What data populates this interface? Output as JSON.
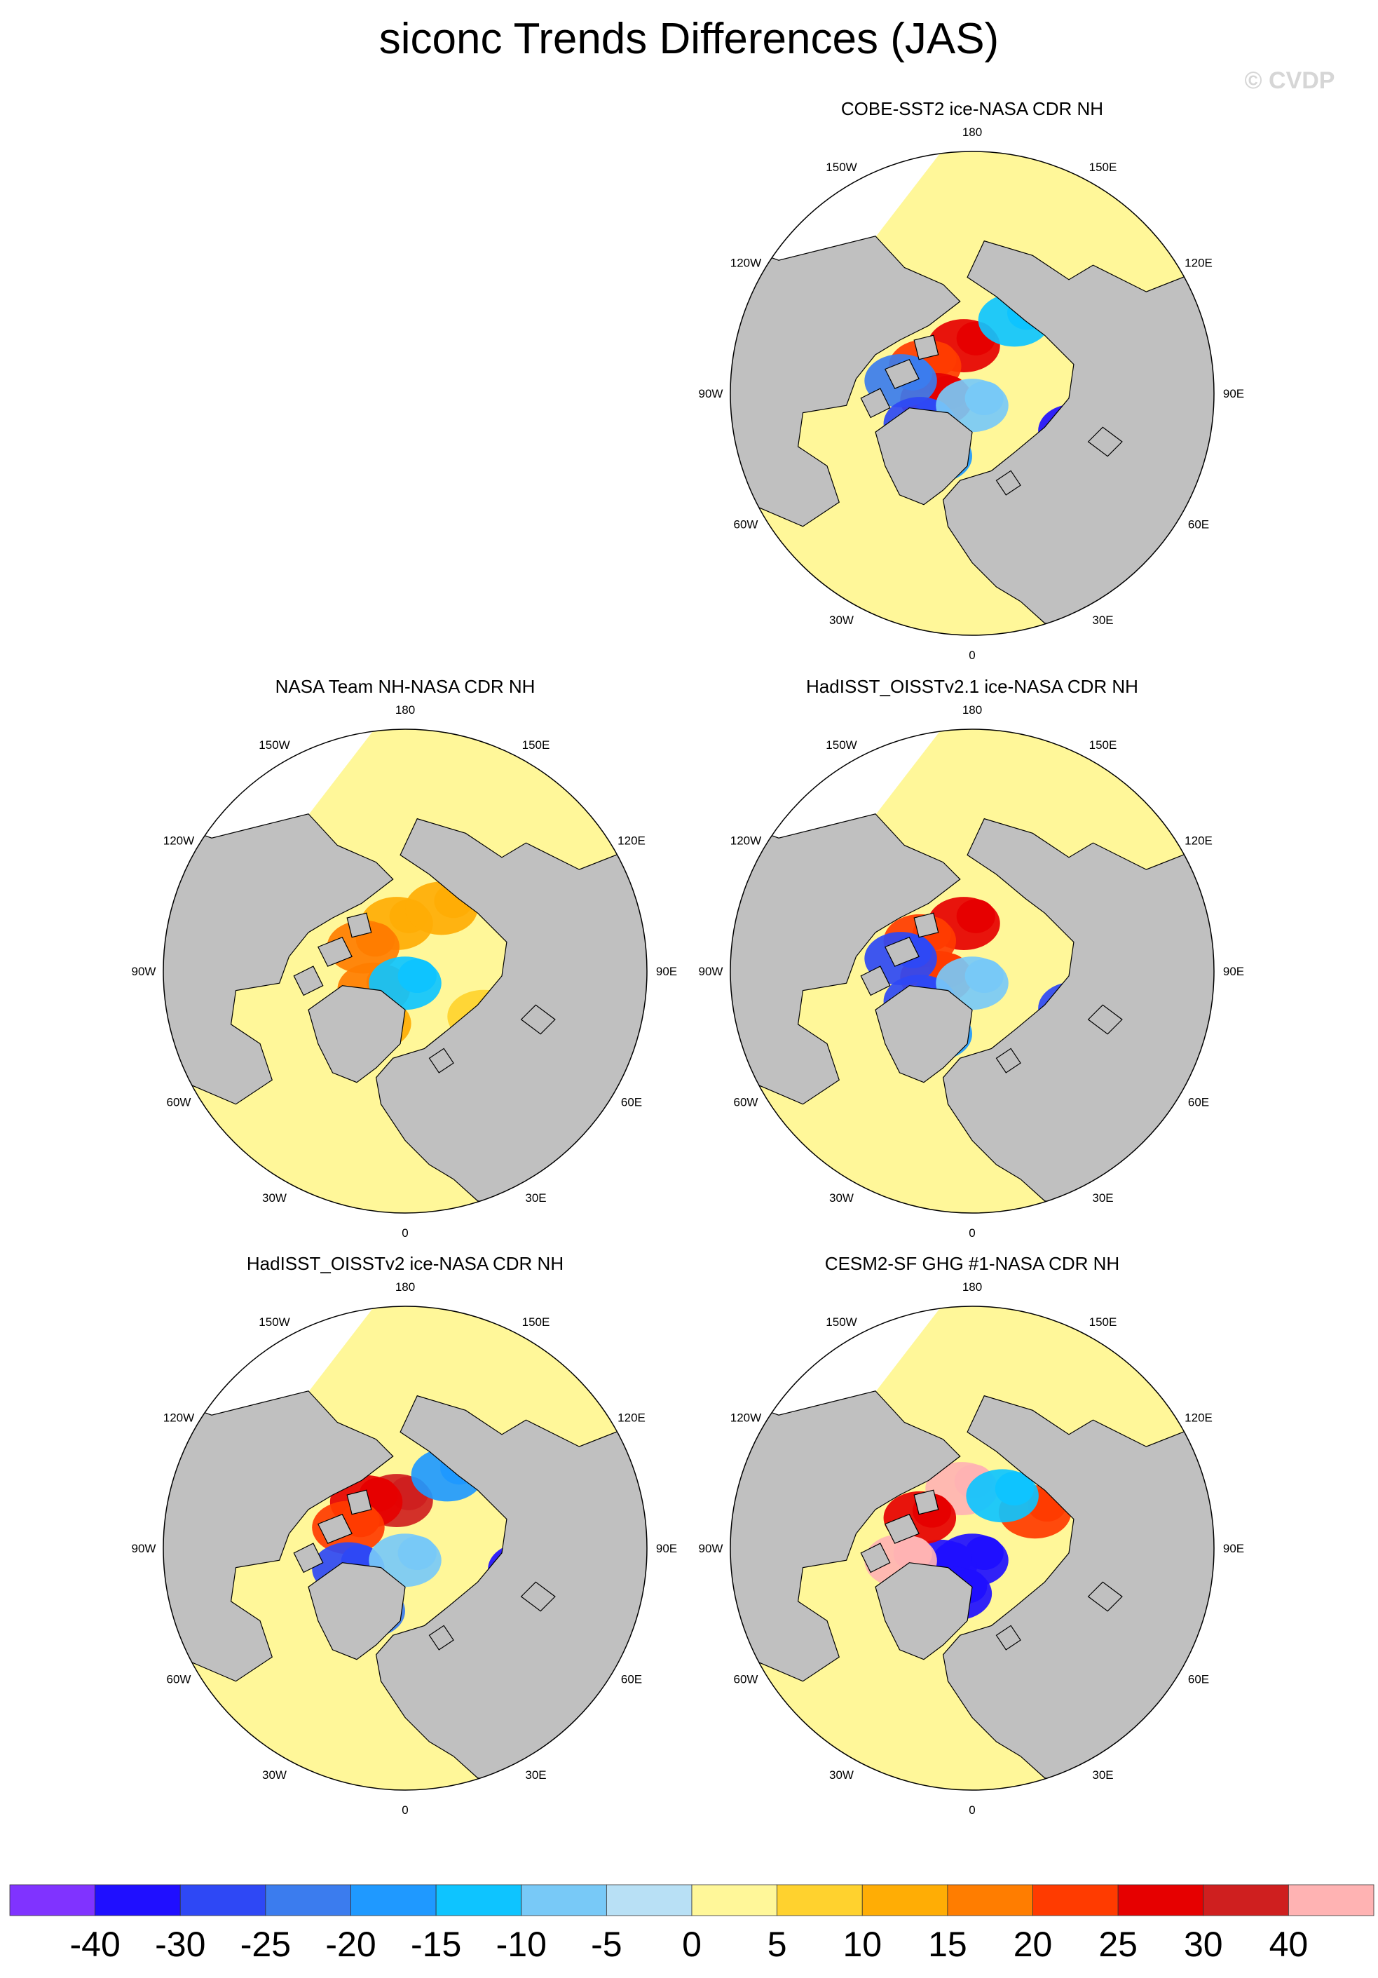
{
  "figure": {
    "title": "siconc Trends Differences (JAS)",
    "watermark": "© CVDP"
  },
  "colors": {
    "land": "#c0c0c0",
    "ocean_background": "#fff799",
    "outline": "#000000",
    "palette": [
      "#8033ff",
      "#1f0fff",
      "#2e48f5",
      "#3b7cee",
      "#1f99ff",
      "#0ec4ff",
      "#78c9f7",
      "#b8e0f5",
      "#fff799",
      "#ffd22e",
      "#ffad05",
      "#ff7d00",
      "#ff3b00",
      "#e60000",
      "#cf1f1f",
      "#ffb3b3"
    ]
  },
  "colorbar": {
    "labels": [
      "-40",
      "-30",
      "-25",
      "-20",
      "-15",
      "-10",
      "-5",
      "0",
      "5",
      "10",
      "15",
      "20",
      "25",
      "30",
      "40"
    ]
  },
  "longitude_labels": [
    "180",
    "150E",
    "120E",
    "90E",
    "60E",
    "30E",
    "0",
    "30W",
    "60W",
    "90W",
    "120W",
    "150W"
  ],
  "chart_data": {
    "type": "heatmap",
    "variable": "siconc",
    "season": "JAS",
    "projection": "north polar stereographic",
    "value_bins": [
      -40,
      -30,
      -25,
      -20,
      -15,
      -10,
      -5,
      0,
      5,
      10,
      15,
      20,
      25,
      30,
      40
    ],
    "panels": [
      {
        "title": "COBE-SST2 ice-NASA CDR NH",
        "position": "top-right",
        "blobs": [
          {
            "lon": 170,
            "lat": 82,
            "v": 28
          },
          {
            "lon": 120,
            "lat": 81,
            "v": 22
          },
          {
            "lon": 80,
            "lat": 84,
            "v": 25
          },
          {
            "lon": 100,
            "lat": 78,
            "v": -25
          },
          {
            "lon": 60,
            "lat": 80,
            "v": -30
          },
          {
            "lon": 30,
            "lat": 78,
            "v": -18
          },
          {
            "lon": -90,
            "lat": 60,
            "v": 12
          },
          {
            "lon": -70,
            "lat": 72,
            "v": -35
          },
          {
            "lon": -150,
            "lat": 76,
            "v": -15
          },
          {
            "lon": 0,
            "lat": 88,
            "v": -8
          }
        ]
      },
      {
        "title": "NASA Team NH-NASA CDR NH",
        "position": "middle-left",
        "blobs": [
          {
            "lon": 170,
            "lat": 82,
            "v": 12
          },
          {
            "lon": 120,
            "lat": 82,
            "v": 15
          },
          {
            "lon": 60,
            "lat": 84,
            "v": 18
          },
          {
            "lon": 30,
            "lat": 80,
            "v": 10
          },
          {
            "lon": -60,
            "lat": 75,
            "v": 8
          },
          {
            "lon": -90,
            "lat": 60,
            "v": 5
          },
          {
            "lon": -150,
            "lat": 78,
            "v": 12
          },
          {
            "lon": 0,
            "lat": 88,
            "v": -12
          }
        ]
      },
      {
        "title": "HadISST_OISSTv2.1 ice-NASA CDR NH",
        "position": "middle-right",
        "blobs": [
          {
            "lon": 170,
            "lat": 82,
            "v": 26
          },
          {
            "lon": 120,
            "lat": 80,
            "v": 24
          },
          {
            "lon": 80,
            "lat": 84,
            "v": 20
          },
          {
            "lon": 100,
            "lat": 78,
            "v": -28
          },
          {
            "lon": 60,
            "lat": 80,
            "v": -30
          },
          {
            "lon": 30,
            "lat": 78,
            "v": -20
          },
          {
            "lon": -90,
            "lat": 60,
            "v": 12
          },
          {
            "lon": -70,
            "lat": 72,
            "v": -30
          },
          {
            "lon": 0,
            "lat": 88,
            "v": -8
          }
        ]
      },
      {
        "title": "HadISST_OISSTv2 ice-NASA CDR NH",
        "position": "bottom-left",
        "blobs": [
          {
            "lon": 170,
            "lat": 82,
            "v": 30
          },
          {
            "lon": 140,
            "lat": 80,
            "v": 26
          },
          {
            "lon": 110,
            "lat": 80,
            "v": 22
          },
          {
            "lon": 70,
            "lat": 80,
            "v": -28
          },
          {
            "lon": 30,
            "lat": 78,
            "v": -22
          },
          {
            "lon": -90,
            "lat": 60,
            "v": 10
          },
          {
            "lon": -80,
            "lat": 70,
            "v": -38
          },
          {
            "lon": -150,
            "lat": 76,
            "v": -20
          },
          {
            "lon": 0,
            "lat": 88,
            "v": -6
          }
        ]
      },
      {
        "title": "CESM2-SF GHG #1-NASA CDR NH",
        "position": "bottom-right",
        "blobs": [
          {
            "lon": 0,
            "lat": 88,
            "v": -38
          },
          {
            "lon": 60,
            "lat": 84,
            "v": -35
          },
          {
            "lon": 20,
            "lat": 82,
            "v": -32
          },
          {
            "lon": 170,
            "lat": 80,
            "v": 40
          },
          {
            "lon": 120,
            "lat": 80,
            "v": 25
          },
          {
            "lon": 80,
            "lat": 78,
            "v": 40
          },
          {
            "lon": -120,
            "lat": 78,
            "v": 22
          },
          {
            "lon": -90,
            "lat": 62,
            "v": 20
          },
          {
            "lon": -150,
            "lat": 80,
            "v": -12
          }
        ]
      }
    ]
  }
}
